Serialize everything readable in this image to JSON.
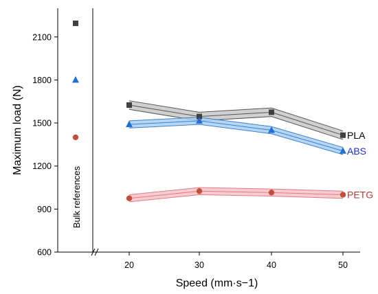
{
  "chart_data": {
    "type": "line",
    "xlabel": "Speed (mm·s−1)",
    "ylabel": "Maximum load (N)",
    "ylim": [
      600,
      2300
    ],
    "yticks": [
      600,
      900,
      1200,
      1500,
      1800,
      2100
    ],
    "x": [
      20,
      30,
      40,
      50
    ],
    "xticks": [
      "20",
      "30",
      "40",
      "50"
    ],
    "axis_break": true,
    "grid": false,
    "legend": "inline labels at right end of each series",
    "bulk_label": "Bulk references",
    "series": [
      {
        "name": "PLA",
        "marker": "square",
        "color": "#404040",
        "band_color": "#c8c8c8",
        "band_stroke": "#555555",
        "label_color": "#000000",
        "values": [
          1625,
          1545,
          1575,
          1415
        ],
        "band_halfwidth": [
          30,
          30,
          30,
          30
        ],
        "bulk_reference": 2195
      },
      {
        "name": "ABS",
        "marker": "triangle",
        "color": "#1f6fd6",
        "band_color": "#a9cff2",
        "band_stroke": "#3b82d1",
        "label_color": "#1a2fd6",
        "values": [
          1490,
          1515,
          1450,
          1305
        ],
        "band_halfwidth": [
          25,
          25,
          25,
          25
        ],
        "bulk_reference": 1800
      },
      {
        "name": "PETG",
        "marker": "circle",
        "color": "#c0503c",
        "band_color": "#f6c3c8",
        "band_stroke": "#e27b86",
        "label_color": "#b23a30",
        "values": [
          975,
          1025,
          1015,
          1000
        ],
        "band_halfwidth": [
          25,
          25,
          25,
          25
        ],
        "bulk_reference": 1400
      }
    ]
  }
}
